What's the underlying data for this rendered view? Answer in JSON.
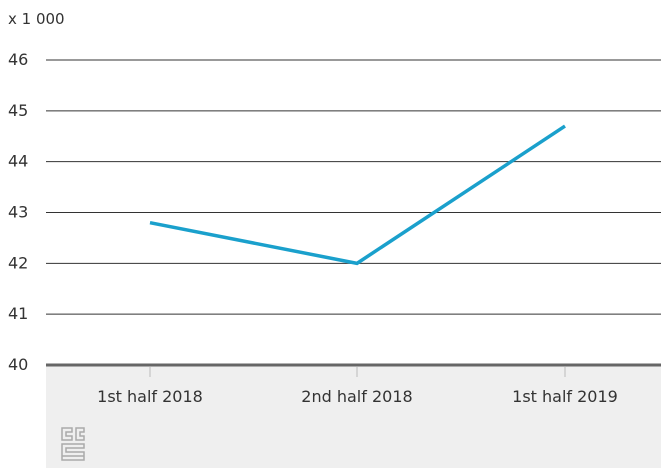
{
  "chart_data": {
    "type": "line",
    "unit_label": "x 1 000",
    "categories": [
      "1st half 2018",
      "2nd half 2018",
      "1st half 2019"
    ],
    "series": [
      {
        "values": [
          42.8,
          42.0,
          44.7
        ],
        "color": "#1aa0cc"
      }
    ],
    "ylim": [
      40,
      46
    ],
    "yticks": [
      "40",
      "41",
      "42",
      "43",
      "44",
      "45",
      "46"
    ],
    "grid": true,
    "colors": {
      "gridline": "#333333",
      "axis_baseline": "#666666",
      "axis_band": "#efefef",
      "logo": "#aaaaaa"
    }
  },
  "logo": {
    "icon": "cbs-logo-icon"
  }
}
